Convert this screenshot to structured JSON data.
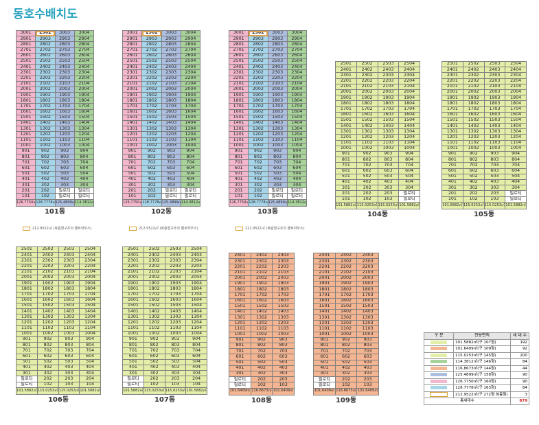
{
  "page_title": "동호수배치도",
  "colors": {
    "pink": "#f4b6cc",
    "lime": "#e4eea8",
    "orange": "#f4b592",
    "green": "#a7d29a",
    "blue": "#adbfe0",
    "purple": "#c0aed7",
    "cyan": "#a6d5ea",
    "white": "#ffffff",
    "highlight_border": "#e0a050"
  },
  "piloti_label": "필로티",
  "note_text": "212.9522㎡ (복층형구조의 펜트하우스)",
  "buildings": [
    {
      "name": "101동",
      "floors_top": 30,
      "lines": 4,
      "cols": [
        "pink",
        "cyan",
        "blue",
        "green"
      ],
      "areas": [
        "126.7750㎡",
        "128.7778㎡",
        "125.4899㎡",
        "114.3812㎡"
      ],
      "penthouse_col": 1,
      "top_floor_units": [
        1,
        1,
        1,
        1
      ],
      "piloti_floors": 2,
      "piloti_lines": [
        2,
        3
      ],
      "note": true
    },
    {
      "name": "102동",
      "floors_top": 30,
      "lines": 4,
      "cols": [
        "pink",
        "cyan",
        "blue",
        "green"
      ],
      "areas": [
        "126.7750㎡",
        "128.7778㎡",
        "125.4899㎡",
        "114.3812㎡"
      ],
      "penthouse_col": 1,
      "top_floor_units": [
        1,
        1,
        1,
        1
      ],
      "piloti_floors": 2,
      "piloti_lines": [
        2,
        3
      ],
      "note": true
    },
    {
      "name": "103동",
      "floors_top": 30,
      "lines": 4,
      "cols": [
        "pink",
        "cyan",
        "blue",
        "green"
      ],
      "areas": [
        "126.7750㎡",
        "128.7778㎡",
        "125.4899㎡",
        "114.3812㎡"
      ],
      "penthouse_col": 1,
      "top_floor_units": [
        1,
        1,
        1,
        1
      ],
      "piloti_floors": 2,
      "piloti_lines": [
        2,
        3
      ],
      "note": true
    },
    {
      "name": "104동",
      "floors_top": 25,
      "lines": 4,
      "cols": [
        "lime",
        "lime",
        "lime",
        "lime"
      ],
      "areas": [
        "101.5882㎡",
        "115.0253㎡",
        "115.0253㎡",
        "101.5882㎡"
      ],
      "penthouse_col": -1,
      "top_floor_units": [
        1,
        1,
        1,
        1
      ],
      "piloti_floors": 2,
      "piloti_lines": [
        3
      ],
      "note": false
    },
    {
      "name": "105동",
      "floors_top": 25,
      "lines": 4,
      "cols": [
        "lime",
        "lime",
        "lime",
        "lime"
      ],
      "areas": [
        "101.5882㎡",
        "115.0253㎡",
        "115.0253㎡",
        "101.5882㎡"
      ],
      "penthouse_col": -1,
      "top_floor_units": [
        1,
        1,
        1,
        1
      ],
      "piloti_floors": 2,
      "piloti_lines": [
        3
      ],
      "note": false
    },
    {
      "name": "106동",
      "floors_top": 25,
      "lines": 4,
      "cols": [
        "lime",
        "lime",
        "lime",
        "lime"
      ],
      "areas": [
        "101.5882㎡",
        "115.0253㎡",
        "115.0253㎡",
        "101.5882㎡"
      ],
      "penthouse_col": -1,
      "top_floor_units": [
        1,
        1,
        1,
        1
      ],
      "piloti_floors": 2,
      "piloti_lines": [
        0
      ],
      "note": false
    },
    {
      "name": "107동",
      "floors_top": 25,
      "lines": 4,
      "cols": [
        "lime",
        "lime",
        "lime",
        "lime"
      ],
      "areas": [
        "101.5882㎡",
        "115.0253㎡",
        "115.0253㎡",
        "101.5882㎡"
      ],
      "penthouse_col": -1,
      "top_floor_units": [
        1,
        1,
        1,
        1
      ],
      "piloti_floors": 2,
      "piloti_lines": [
        0
      ],
      "note": false
    },
    {
      "name": "108동",
      "floors_top": 24,
      "lines": 3,
      "cols": [
        "orange",
        "orange",
        "orange"
      ],
      "areas": [
        "101.6409㎡",
        "116.8673㎡",
        "101.6409㎡"
      ],
      "penthouse_col": -1,
      "top_floor_units": [
        1,
        1,
        1
      ],
      "piloti_floors": 2,
      "piloti_lines": [
        0
      ],
      "note": false
    },
    {
      "name": "109동",
      "floors_top": 24,
      "lines": 3,
      "cols": [
        "orange",
        "orange",
        "orange"
      ],
      "areas": [
        "101.6409㎡",
        "116.8673㎡",
        "101.6409㎡"
      ],
      "penthouse_col": -1,
      "top_floor_units": [
        1,
        1,
        1
      ],
      "piloti_floors": 2,
      "piloti_lines": [
        0
      ],
      "note": false
    }
  ],
  "legend": {
    "headers": [
      "구 분",
      "전용면적",
      "세 대 수"
    ],
    "rows": [
      {
        "color": "lime",
        "area": "101.5882㎡(구 107형)",
        "count": "192"
      },
      {
        "color": "orange",
        "area": "101.6409㎡(구 109형)",
        "count": "92"
      },
      {
        "color": "lime",
        "area": "115.0253㎡(구 145형)",
        "count": "200"
      },
      {
        "color": "green",
        "area": "114.3812㎡(구 146형)",
        "count": "84"
      },
      {
        "color": "orange",
        "area": "116.8673㎡(구 144형)",
        "count": "44"
      },
      {
        "color": "blue",
        "area": "125.4899㎡(구 158형)",
        "count": "90"
      },
      {
        "color": "pink",
        "area": "126.7750㎡(구 160형)",
        "count": "90"
      },
      {
        "color": "cyan",
        "area": "128.7778㎡(구 163형)",
        "count": "84"
      },
      {
        "color": "white",
        "area": "212.9522㎡(구 272형 복층형)",
        "count": "3"
      }
    ],
    "total_label": "총세대수",
    "total_count": "879"
  }
}
